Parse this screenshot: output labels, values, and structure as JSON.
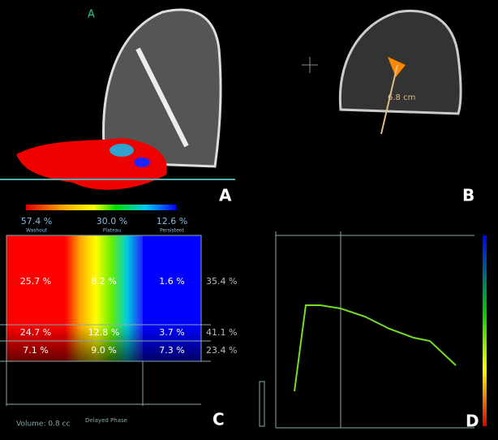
{
  "panels": {
    "a": {
      "label": "A",
      "marker": "A"
    },
    "b": {
      "label": "B",
      "measurement": "6.8 cm"
    },
    "c": {
      "label": "C",
      "header": [
        {
          "value": "57.4 %",
          "name": "Washout"
        },
        {
          "value": "30.0 %",
          "name": "Plateau"
        },
        {
          "value": "12.6 %",
          "name": "Persistent"
        }
      ],
      "rows": [
        [
          "25.7 %",
          "8.2 %",
          "1.6 %",
          "35.4 %"
        ],
        [
          "24.7 %",
          "12.8 %",
          "3.7 %",
          "41.1 %"
        ],
        [
          "7.1 %",
          "9.0 %",
          "7.3 %",
          "23.4 %"
        ]
      ],
      "volume": "Volume: 0.8 cc",
      "phase": "Delayed Phase"
    },
    "d": {
      "label": "D"
    }
  }
}
